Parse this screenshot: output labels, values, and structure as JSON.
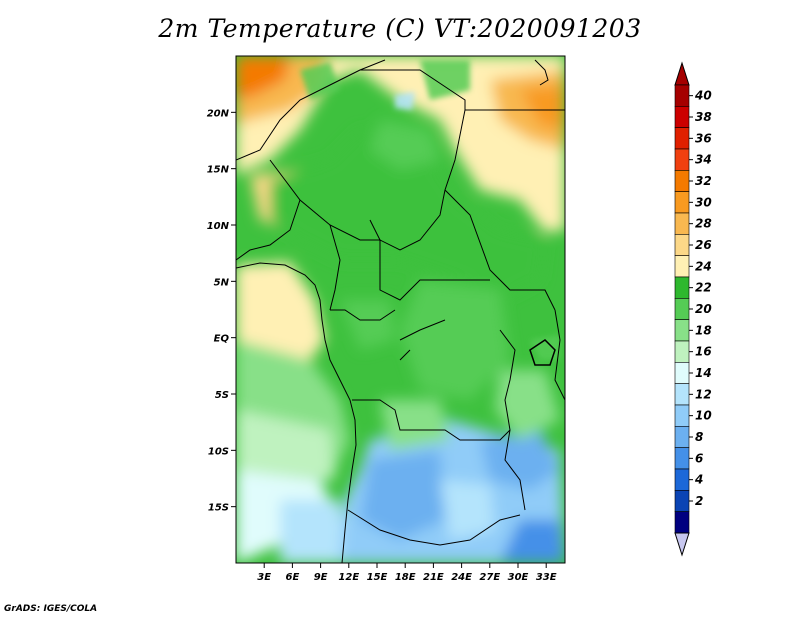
{
  "title": "2m Temperature (C) VT:2020091203",
  "credit": "GrADS: IGES/COLA",
  "map": {
    "lat_labels": [
      "20N",
      "15N",
      "10N",
      "5N",
      "EQ",
      "5S",
      "10S",
      "15S"
    ],
    "lat_values": [
      20,
      15,
      10,
      5,
      0,
      -5,
      -10,
      -15
    ],
    "lon_labels": [
      "3E",
      "6E",
      "9E",
      "12E",
      "15E",
      "18E",
      "21E",
      "24E",
      "27E",
      "30E",
      "33E"
    ],
    "lon_values": [
      3,
      6,
      9,
      12,
      15,
      18,
      21,
      24,
      27,
      30,
      33
    ],
    "lon_range": [
      0,
      35
    ],
    "lat_range": [
      -20,
      25
    ]
  },
  "colorbar": {
    "labels": [
      "40",
      "38",
      "36",
      "34",
      "32",
      "30",
      "28",
      "26",
      "24",
      "22",
      "20",
      "18",
      "16",
      "14",
      "12",
      "10",
      "8",
      "6",
      "4",
      "2"
    ],
    "colors": [
      "#a50000",
      "#cc0000",
      "#e02000",
      "#f04010",
      "#f47a00",
      "#f89a20",
      "#f8b850",
      "#fcd888",
      "#fff0b4",
      "#2eb82e",
      "#55cc55",
      "#88e088",
      "#bff2bf",
      "#e0fcfc",
      "#b4e4fc",
      "#90ccf8",
      "#6cb0f0",
      "#4490e8",
      "#1c68d8",
      "#0a44b4",
      "#000080"
    ],
    "over_color": "#a50000",
    "under_color": "#c8c8f0"
  }
}
